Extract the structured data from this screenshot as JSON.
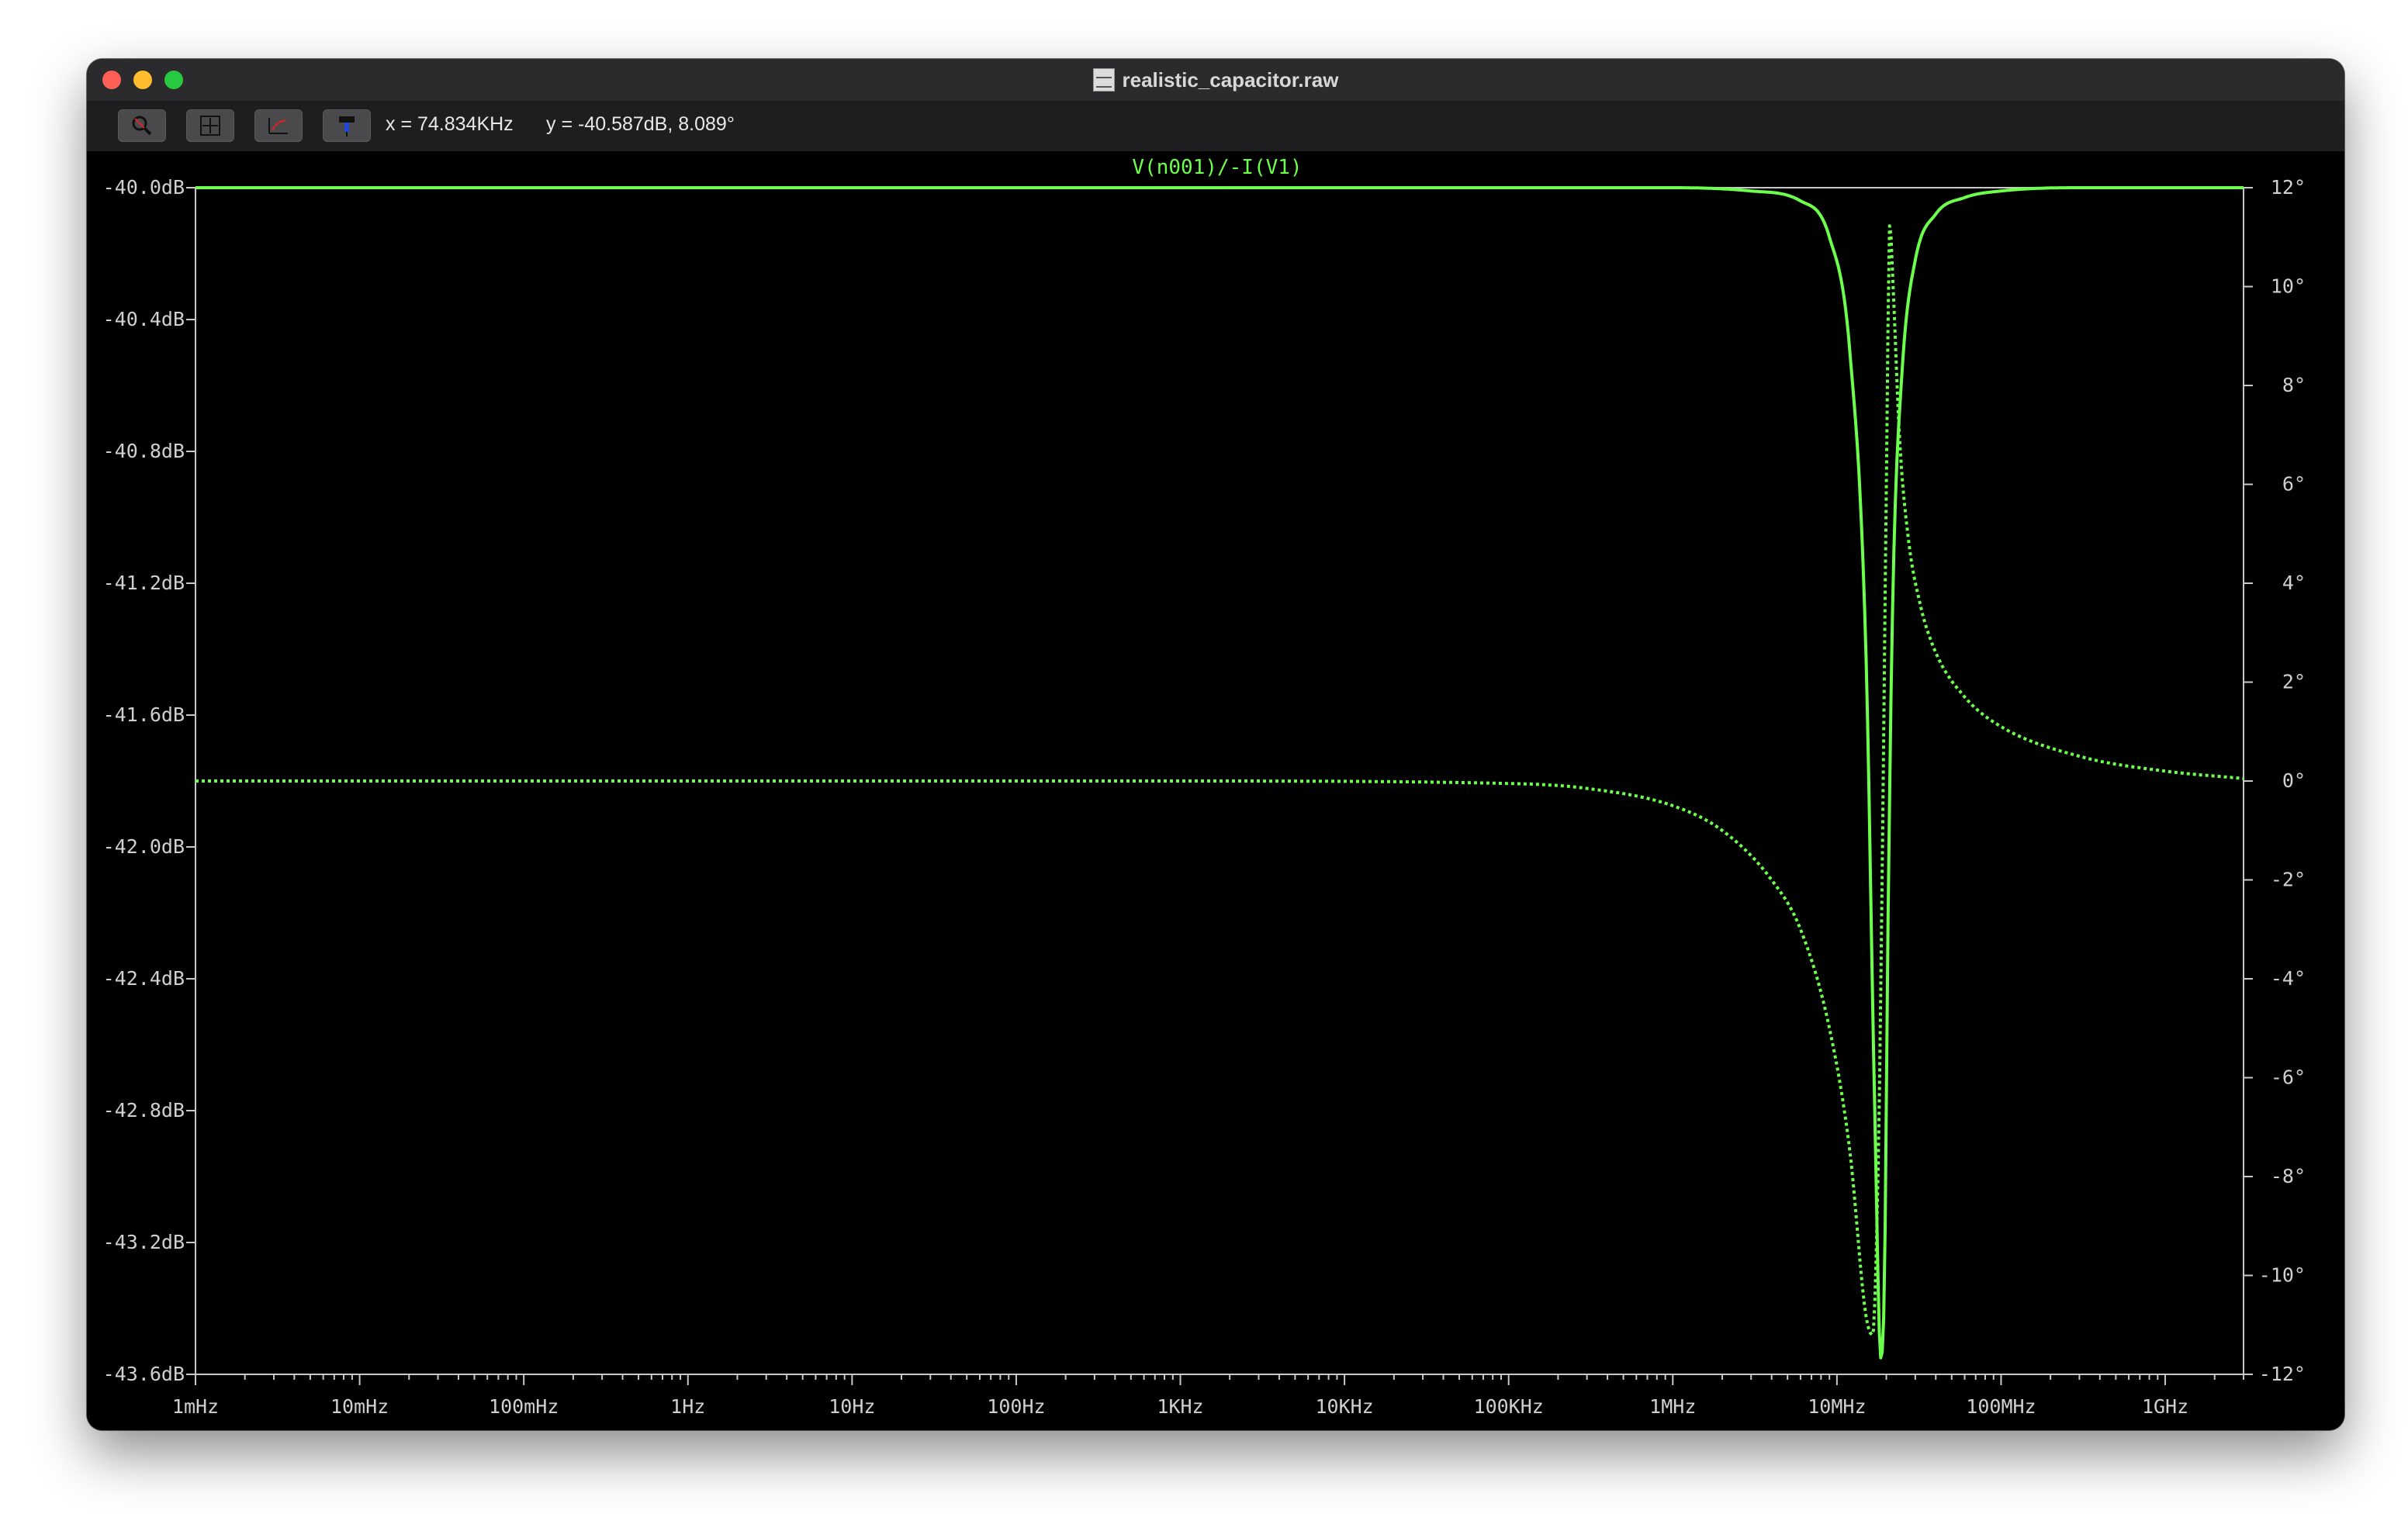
{
  "window": {
    "title": "realistic_capacitor.raw",
    "title_icon": "waveform-file-icon"
  },
  "toolbar": {
    "buttons": [
      {
        "name": "zoom-icon"
      },
      {
        "name": "autorange-icon"
      },
      {
        "name": "zoom-back-icon"
      },
      {
        "name": "probe-icon"
      }
    ],
    "x_readout": "x = 74.834KHz",
    "y_readout": "y = -40.587dB, 8.089°"
  },
  "colors": {
    "trace": "#6cff4c",
    "background": "#000000",
    "axis": "#c8c8c8"
  },
  "chart_data": {
    "type": "line",
    "title": "V(n001)/-I(V1)",
    "x_scale": "log",
    "xlim": [
      "1mHz",
      "3GHz"
    ],
    "x_ticks": [
      "1mHz",
      "10mHz",
      "100mHz",
      "1Hz",
      "10Hz",
      "100Hz",
      "1KHz",
      "10KHz",
      "100KHz",
      "1MHz",
      "10MHz",
      "100MHz",
      "1GHz"
    ],
    "left_axis": {
      "unit": "dB",
      "ylim": [
        -43.6,
        -40.0
      ],
      "ticks": [
        "-40.0dB",
        "-40.4dB",
        "-40.8dB",
        "-41.2dB",
        "-41.6dB",
        "-42.0dB",
        "-42.4dB",
        "-42.8dB",
        "-43.2dB",
        "-43.6dB"
      ]
    },
    "right_axis": {
      "unit": "°",
      "ylim": [
        -12,
        12
      ],
      "ticks": [
        "12°",
        "10°",
        "8°",
        "6°",
        "4°",
        "2°",
        "0°",
        "-2°",
        "-4°",
        "-6°",
        "-8°",
        "-10°",
        "-12°"
      ]
    },
    "grid": false,
    "series": [
      {
        "style": "solid",
        "axis": "left",
        "x": [
          0.001,
          1,
          1000,
          1000000,
          3000000,
          6000000,
          9000000,
          12000000,
          15000000,
          17000000,
          18500000,
          19500000,
          20500000,
          22000000,
          25000000,
          30000000,
          40000000,
          60000000,
          100000000,
          300000000,
          1000000000,
          3000000000
        ],
        "values": [
          -40.0,
          -40.0,
          -40.0,
          -40.0,
          -40.01,
          -40.04,
          -40.15,
          -40.5,
          -41.4,
          -42.8,
          -43.55,
          -43.3,
          -42.2,
          -41.2,
          -40.55,
          -40.22,
          -40.08,
          -40.03,
          -40.01,
          -40.0,
          -40.0,
          -40.0
        ]
      },
      {
        "style": "dotted",
        "axis": "right",
        "x": [
          0.001,
          1,
          1000,
          100000,
          300000,
          1000000,
          2000000,
          4000000,
          6000000,
          9000000,
          12000000,
          15000000,
          16500000,
          18000000,
          19000000,
          20000000,
          21000000,
          22000000,
          24000000,
          27000000,
          32000000,
          40000000,
          60000000,
          100000000,
          300000000,
          1000000000,
          3000000000
        ],
        "values": [
          0,
          0,
          0,
          -0.05,
          -0.15,
          -0.5,
          -1.0,
          -2.0,
          -3.0,
          -5.0,
          -7.5,
          -10.8,
          -11.2,
          -7.0,
          -1.0,
          6.0,
          11.3,
          10.0,
          7.0,
          5.0,
          3.6,
          2.6,
          1.7,
          1.1,
          0.5,
          0.2,
          0.05
        ]
      }
    ]
  }
}
